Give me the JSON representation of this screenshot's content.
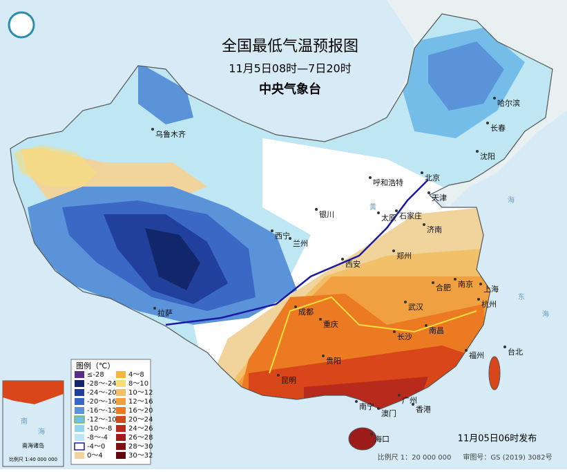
{
  "header": {
    "title": "全国最低气温预报图",
    "subtitle": "11月5日08时—7日20时",
    "agency": "中央气象台"
  },
  "legend": {
    "title": "图例（℃）",
    "items": [
      {
        "label": "≤-28",
        "color": "#5b2c86"
      },
      {
        "label": "-28～-24",
        "color": "#12276b"
      },
      {
        "label": "-24～-20",
        "color": "#21409c"
      },
      {
        "label": "-20～-16",
        "color": "#3b67c5"
      },
      {
        "label": "-16～-12",
        "color": "#5b93d9"
      },
      {
        "label": "-12～-10",
        "color": "#74bde8"
      },
      {
        "label": "-10～-8",
        "color": "#92d5f0"
      },
      {
        "label": "-8～-4",
        "color": "#bfe6f3"
      },
      {
        "label": "-4～0",
        "color": "#ffffff"
      },
      {
        "label": "0～4",
        "color": "#f1d49c"
      },
      {
        "label": "4～8",
        "color": "#f4b63f"
      },
      {
        "label": "8～10",
        "color": "#f7dc7a"
      },
      {
        "label": "10～12",
        "color": "#f3c06a"
      },
      {
        "label": "12～16",
        "color": "#f0a040"
      },
      {
        "label": "16～20",
        "color": "#ec7a22"
      },
      {
        "label": "20～24",
        "color": "#d8461a"
      },
      {
        "label": "24～26",
        "color": "#b82a1c"
      },
      {
        "label": "26～28",
        "color": "#9c1b1b"
      },
      {
        "label": "28～30",
        "color": "#7d1212"
      },
      {
        "label": "30～32",
        "color": "#5e0a0a"
      }
    ]
  },
  "cities": [
    "乌鲁木齐",
    "哈尔滨",
    "长春",
    "沈阳",
    "北京",
    "呼和浩特",
    "天津",
    "石家庄",
    "太原",
    "济南",
    "银川",
    "西宁",
    "兰州",
    "西安",
    "郑州",
    "合肥",
    "南京",
    "上海",
    "杭州",
    "武汉",
    "成都",
    "重庆",
    "长沙",
    "南昌",
    "福州",
    "台北",
    "贵阳",
    "昆明",
    "拉萨",
    "南宁",
    "广州",
    "澳门",
    "香港",
    "海口"
  ],
  "seas": [
    "黄",
    "海",
    "东",
    "海"
  ],
  "inset": {
    "labels": [
      "南",
      "海",
      "南海诸岛",
      "比例尺 1:40 000 000"
    ]
  },
  "footer": {
    "issued": "11月05日06时发布",
    "scale": "比例尺 1：20 000 000",
    "map_number": "审图号：GS (2019) 3082号"
  }
}
